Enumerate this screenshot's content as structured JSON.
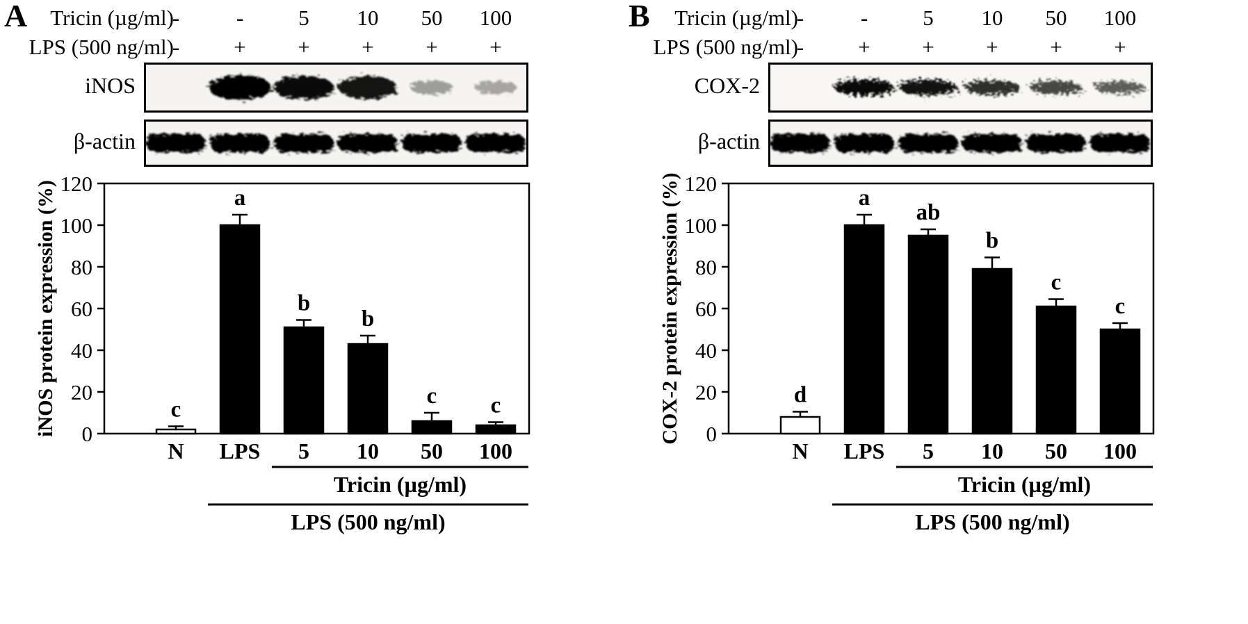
{
  "figure": {
    "background": "#ffffff",
    "panels": [
      {
        "panel_label": "A",
        "treatment_rows": [
          {
            "label": "Tricin (µg/ml)",
            "values": [
              "-",
              "-",
              "5",
              "10",
              "50",
              "100"
            ]
          },
          {
            "label": "LPS (500 ng/ml)",
            "values": [
              "-",
              "+",
              "+",
              "+",
              "+",
              "+"
            ]
          }
        ],
        "blots": [
          {
            "label": "iNOS",
            "style": "blob",
            "band_intensities": [
              0,
              1.0,
              0.9,
              0.85,
              0.16,
              0.12
            ]
          },
          {
            "label": "β-actin",
            "style": "pill",
            "band_intensities": [
              1,
              1,
              1,
              1,
              1,
              1
            ]
          }
        ]
      },
      {
        "panel_label": "B",
        "treatment_rows": [
          {
            "label": "Tricin (µg/ml)",
            "values": [
              "-",
              "-",
              "5",
              "10",
              "50",
              "100"
            ]
          },
          {
            "label": "LPS (500 ng/ml)",
            "values": [
              "-",
              "+",
              "+",
              "+",
              "+",
              "+"
            ]
          }
        ],
        "blots": [
          {
            "label": "COX-2",
            "style": "thin-blob",
            "band_intensities": [
              0,
              0.95,
              0.9,
              0.75,
              0.62,
              0.5
            ]
          },
          {
            "label": "β-actin",
            "style": "pill",
            "band_intensities": [
              1,
              1,
              1,
              1,
              1,
              1
            ]
          }
        ]
      }
    ]
  },
  "chart_data": [
    {
      "type": "bar",
      "title": "",
      "ylabel": "iNOS protein expression (%)",
      "xlabel": "",
      "ylim": [
        0,
        120
      ],
      "yticks": [
        0,
        20,
        40,
        60,
        80,
        100,
        120
      ],
      "grid": false,
      "legend": null,
      "categories": [
        "N",
        "LPS",
        "5",
        "10",
        "50",
        "100"
      ],
      "values": [
        2,
        100,
        51,
        43,
        6,
        4
      ],
      "errors": [
        1.5,
        5,
        3.5,
        4,
        4,
        1.5
      ],
      "sig_letters": [
        "c",
        "a",
        "b",
        "b",
        "c",
        "c"
      ],
      "bar_colors": [
        "#ffffff",
        "#000000",
        "#000000",
        "#000000",
        "#000000",
        "#000000"
      ],
      "group_annotations": [
        {
          "label": "Tricin (µg/ml)",
          "from_category": "5",
          "to_category": "100"
        },
        {
          "label": "LPS (500 ng/ml)",
          "from_category": "LPS",
          "to_category": "100"
        }
      ]
    },
    {
      "type": "bar",
      "title": "",
      "ylabel": "COX-2 protein expression (%)",
      "xlabel": "",
      "ylim": [
        0,
        120
      ],
      "yticks": [
        0,
        20,
        40,
        60,
        80,
        100,
        120
      ],
      "grid": false,
      "legend": null,
      "categories": [
        "N",
        "LPS",
        "5",
        "10",
        "50",
        "100"
      ],
      "values": [
        8,
        100,
        95,
        79,
        61,
        50
      ],
      "errors": [
        2.5,
        5,
        3,
        5.5,
        3.5,
        3
      ],
      "sig_letters": [
        "d",
        "a",
        "ab",
        "b",
        "c",
        "c"
      ],
      "bar_colors": [
        "#ffffff",
        "#000000",
        "#000000",
        "#000000",
        "#000000",
        "#000000"
      ],
      "group_annotations": [
        {
          "label": "Tricin (µg/ml)",
          "from_category": "5",
          "to_category": "100"
        },
        {
          "label": "LPS (500 ng/ml)",
          "from_category": "LPS",
          "to_category": "100"
        }
      ]
    }
  ]
}
